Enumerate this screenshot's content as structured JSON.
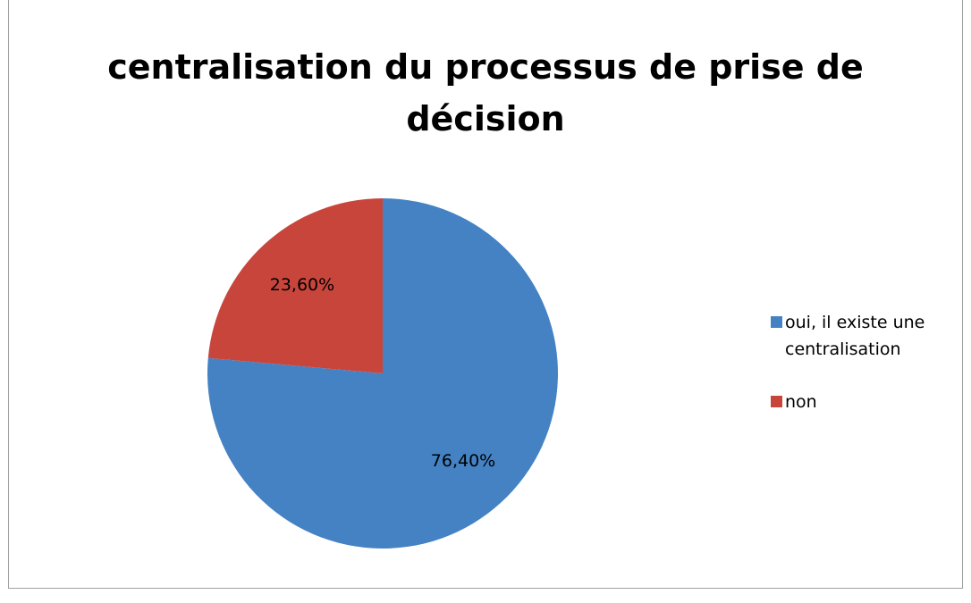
{
  "chart_data": {
    "type": "pie",
    "title": "centralisation du processus de prise de décision",
    "categories": [
      "oui, il existe une centralisation",
      "non"
    ],
    "values": [
      76.4,
      23.6
    ],
    "value_labels": [
      "76,40%",
      "23,60%"
    ],
    "colors": [
      "#4482c4",
      "#c8453c"
    ],
    "legend": "right"
  }
}
